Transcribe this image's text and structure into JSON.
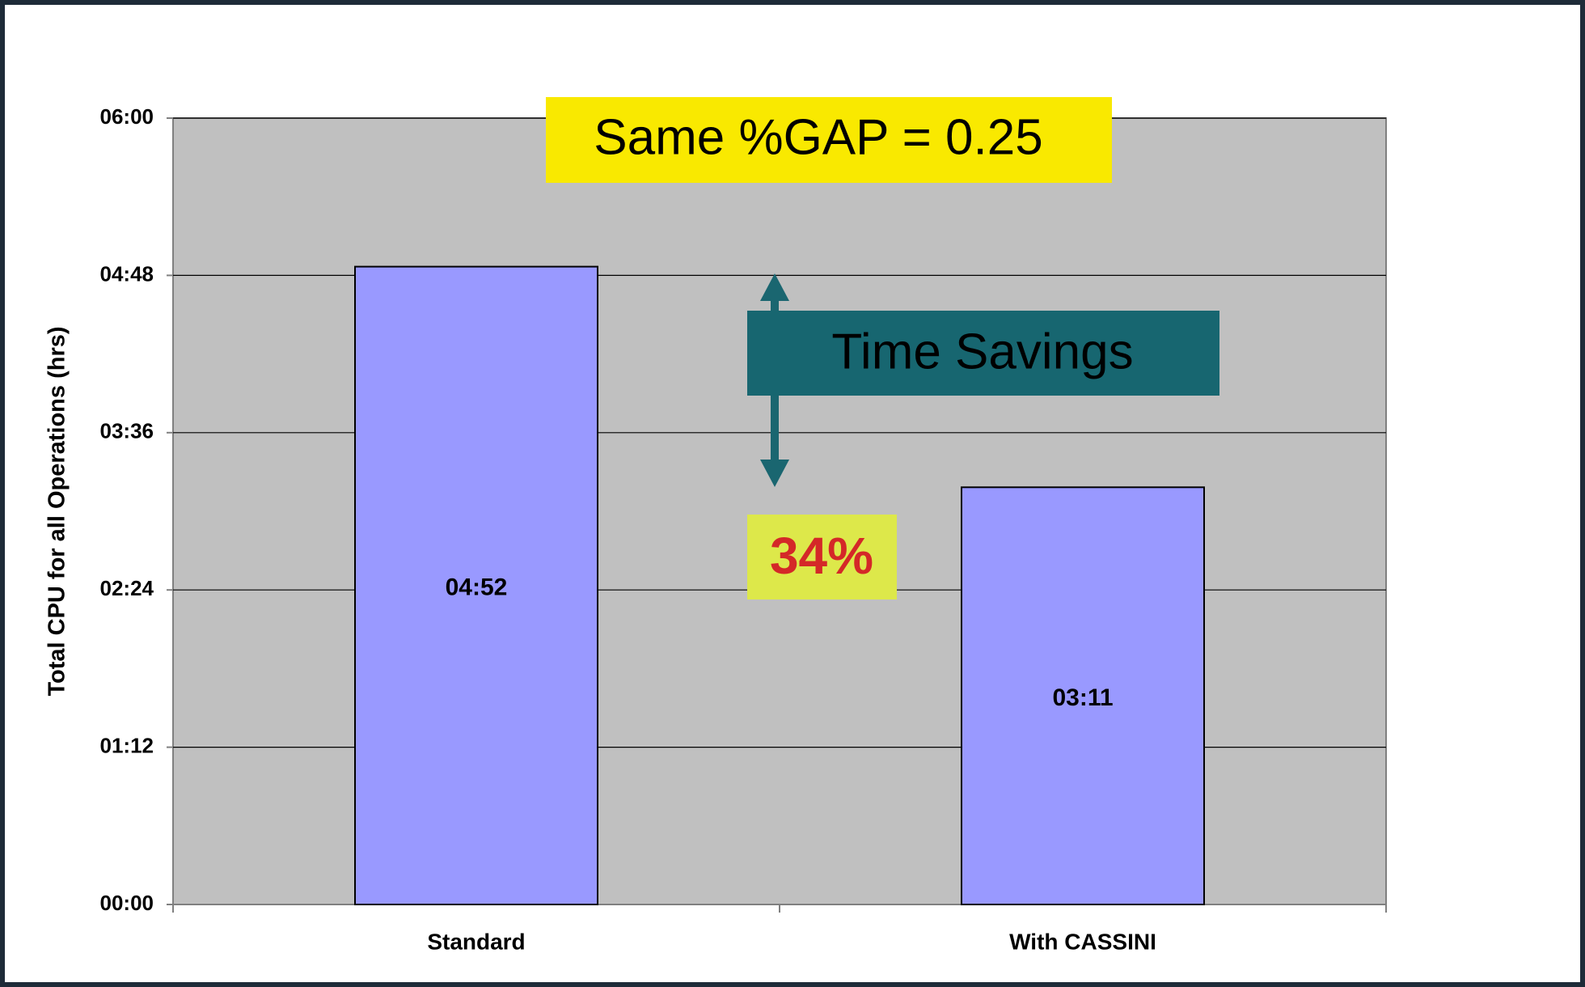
{
  "chart_data": {
    "type": "bar",
    "y_label": "Total CPU for all Operations (hrs)",
    "categories": [
      "Standard",
      "With CASSINI"
    ],
    "values": [
      4.8667,
      3.1833
    ],
    "value_labels": [
      "04:52",
      "03:11"
    ],
    "color": "#9999ff",
    "ylim": [
      0,
      6
    ],
    "yticks": [
      {
        "value": 0,
        "label": "00:00"
      },
      {
        "value": 1.2,
        "label": "01:12"
      },
      {
        "value": 2.4,
        "label": "02:24"
      },
      {
        "value": 3.6,
        "label": "03:36"
      },
      {
        "value": 4.8,
        "label": "04:48"
      },
      {
        "value": 6,
        "label": "06:00"
      }
    ],
    "grid": true,
    "annotations": [
      "Same %GAP = 0.25",
      "Time Savings",
      "34%"
    ]
  }
}
